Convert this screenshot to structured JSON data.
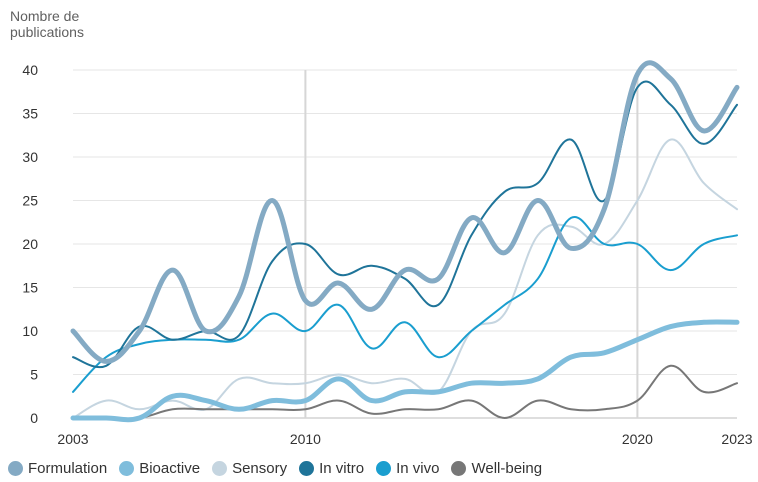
{
  "chart_data": {
    "type": "line",
    "ylabel": "Nombre de\npublications",
    "xlabel": "",
    "x": [
      2003,
      2004,
      2005,
      2006,
      2007,
      2008,
      2009,
      2010,
      2011,
      2012,
      2013,
      2014,
      2015,
      2016,
      2017,
      2018,
      2019,
      2020,
      2021,
      2022,
      2023
    ],
    "x_ticks": [
      "2003",
      "2010",
      "2020",
      "2023"
    ],
    "x_tick_values": [
      2003,
      2010,
      2020,
      2023
    ],
    "y_ticks": [
      "0",
      "5",
      "10",
      "15",
      "20",
      "25",
      "30",
      "35",
      "40"
    ],
    "xlim": [
      2003,
      2023
    ],
    "ylim": [
      0,
      40
    ],
    "vertical_reference_lines": [
      2010,
      2020
    ],
    "legend_position": "bottom",
    "series": [
      {
        "name": "Sensory",
        "color": "#c5d5e0",
        "values": [
          0,
          2,
          1,
          2,
          1,
          4.5,
          4,
          4,
          5,
          4,
          4.5,
          3,
          10,
          12,
          21,
          22,
          20,
          25,
          32,
          27,
          24
        ]
      },
      {
        "name": "Well-being",
        "color": "#777777",
        "values": [
          0,
          0,
          0,
          1,
          1,
          1,
          1,
          1,
          2,
          0.5,
          1,
          1,
          2,
          0,
          2,
          1,
          1,
          2,
          6,
          3,
          4
        ]
      },
      {
        "name": "Bioactive",
        "color": "#7fbddc",
        "values": [
          0,
          0,
          0,
          2.5,
          2,
          1,
          2,
          2,
          4.5,
          2,
          3,
          3,
          4,
          4,
          4.5,
          7,
          7.5,
          9,
          10.5,
          11,
          11
        ]
      },
      {
        "name": "In vivo",
        "color": "#1a9ecf",
        "values": [
          3,
          7,
          8.5,
          9,
          9,
          9,
          12,
          10,
          13,
          8,
          11,
          7,
          10,
          13,
          16,
          23,
          20,
          20,
          17,
          20,
          21
        ]
      },
      {
        "name": "In vitro",
        "color": "#1f7499",
        "values": [
          7,
          6,
          10.5,
          9,
          10,
          9.5,
          18,
          20,
          16.5,
          17.5,
          16,
          13,
          21,
          26,
          27,
          32,
          25,
          38,
          36,
          31.5,
          36
        ]
      },
      {
        "name": "Formulation",
        "color": "#84aac4",
        "values": [
          10,
          6.5,
          10,
          17,
          10,
          14,
          25,
          13.5,
          15.5,
          12.5,
          17,
          16,
          23,
          19,
          25,
          19.5,
          24,
          39.5,
          39,
          33,
          38
        ]
      }
    ],
    "legend": [
      {
        "name": "Formulation",
        "color": "#84aac4"
      },
      {
        "name": "Bioactive",
        "color": "#7fbddc"
      },
      {
        "name": "Sensory",
        "color": "#c5d5e0"
      },
      {
        "name": "In vitro",
        "color": "#1f7499"
      },
      {
        "name": "In vivo",
        "color": "#1a9ecf"
      },
      {
        "name": "Well-being",
        "color": "#777777"
      }
    ]
  }
}
